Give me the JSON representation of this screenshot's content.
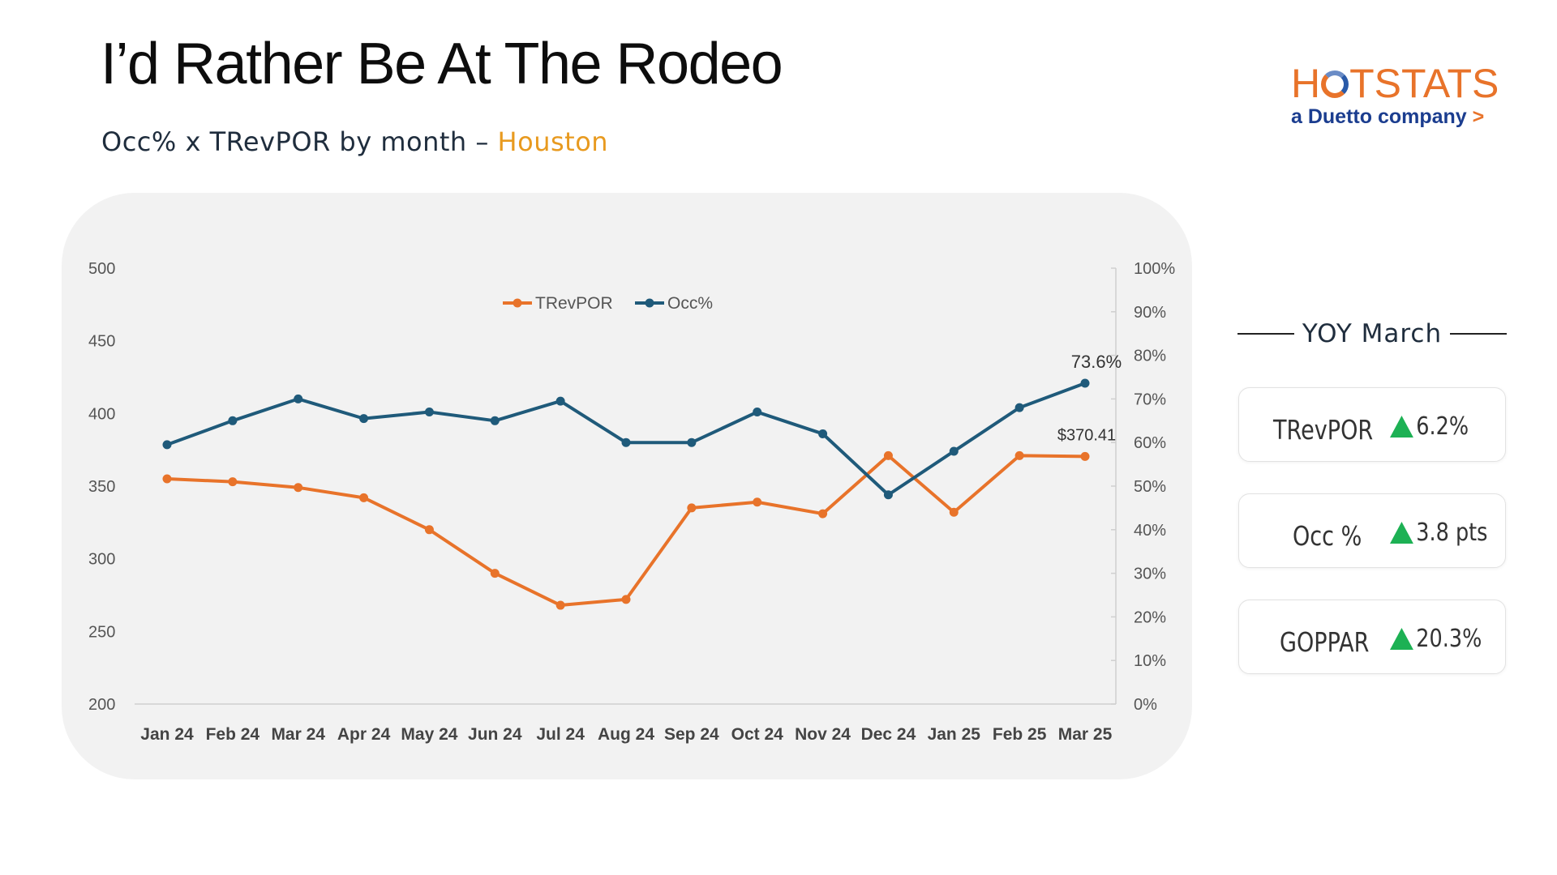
{
  "title": "I’d Rather Be At The Rodeo",
  "subtitle": {
    "main": "Occ% x TRevPOR by month – ",
    "city": "Houston"
  },
  "logo": {
    "word_pre": "H",
    "word_post": "TSTATS",
    "tagline": "a Duetto company",
    "tag_chevron": ">"
  },
  "colors": {
    "trevpor": "#e8732a",
    "occ": "#1f5a7a",
    "accent": "#e89a1f",
    "up": "#1db154"
  },
  "yoy": {
    "heading": "YOY March",
    "kpis": [
      {
        "label": "TRevPOR",
        "value": "6.2%",
        "icon": "up-triangle-icon"
      },
      {
        "label": "Occ %",
        "value": "3.8 pts",
        "icon": "up-triangle-icon"
      },
      {
        "label": "GOPPAR",
        "value": "20.3%",
        "icon": "up-triangle-icon"
      }
    ]
  },
  "chart_data": {
    "type": "line",
    "title": "",
    "categories": [
      "Jan 24",
      "Feb 24",
      "Mar 24",
      "Apr 24",
      "May 24",
      "Jun 24",
      "Jul 24",
      "Aug 24",
      "Sep 24",
      "Oct 24",
      "Nov 24",
      "Dec 24",
      "Jan 25",
      "Feb 25",
      "Mar 25"
    ],
    "series": [
      {
        "name": "TRevPOR",
        "axis": "left",
        "color": "#e8732a",
        "values": [
          355,
          353,
          349,
          342,
          320,
          290,
          268,
          272,
          335,
          339,
          331,
          371,
          332,
          371,
          370.41
        ]
      },
      {
        "name": "Occ%",
        "axis": "right",
        "color": "#1f5a7a",
        "values": [
          59.5,
          65,
          70,
          65.5,
          67,
          65,
          69.5,
          60,
          60,
          67,
          62,
          48,
          58,
          68,
          73.6
        ]
      }
    ],
    "y_left": {
      "min": 200,
      "max": 500,
      "ticks": [
        200,
        250,
        300,
        350,
        400,
        450,
        500
      ],
      "labels": [
        "200",
        "250",
        "300",
        "350",
        "400",
        "450",
        "500"
      ]
    },
    "y_right": {
      "min": 0,
      "max": 100,
      "ticks": [
        0,
        10,
        20,
        30,
        40,
        50,
        60,
        70,
        80,
        90,
        100
      ],
      "labels": [
        "0%",
        "10%",
        "20%",
        "30%",
        "40%",
        "50%",
        "60%",
        "70%",
        "80%",
        "90%",
        "100%"
      ]
    },
    "annotations": [
      {
        "series": "Occ%",
        "index": 14,
        "text": "73.6%"
      },
      {
        "series": "TRevPOR",
        "index": 14,
        "text": "$370.41"
      }
    ],
    "legend": "top-center",
    "grid": false
  }
}
